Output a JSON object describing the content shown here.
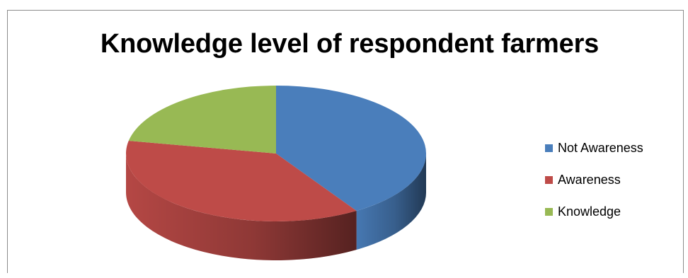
{
  "chart_data": {
    "type": "pie",
    "title": "Knowledge level of respondent farmers",
    "categories": [
      "Not Awareness",
      "Awareness",
      "Knowledge"
    ],
    "values": [
      41,
      37,
      22
    ],
    "colors": [
      "#4a7ebb",
      "#be4b48",
      "#98b954"
    ],
    "legend_position": "right",
    "style": "3d"
  }
}
